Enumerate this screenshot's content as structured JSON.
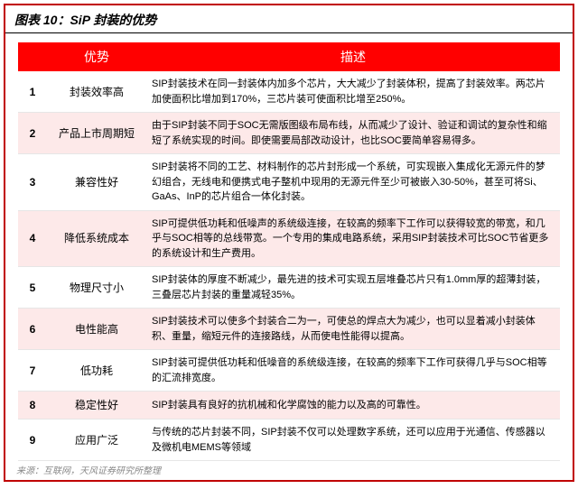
{
  "caption": "图表 10：SiP 封装的优势",
  "header": {
    "col1": "",
    "col2": "优势",
    "col3": "描述"
  },
  "rows": [
    {
      "idx": "1",
      "adv": "封装效率高",
      "desc": "SIP封装技术在同一封装体内加多个芯片，大大减少了封装体积，提高了封装效率。两芯片加使面积比增加到170%，三芯片装可使面积比增至250%。"
    },
    {
      "idx": "2",
      "adv": "产品上市周期短",
      "desc": "由于SIP封装不同于SOC无需版图级布局布线，从而减少了设计、验证和调试的复杂性和缩短了系统实现的时间。即使需要局部改动设计，也比SOC要简单容易得多。"
    },
    {
      "idx": "3",
      "adv": "兼容性好",
      "desc": "SIP封装将不同的工艺、材料制作的芯片封形成一个系统，可实现嵌入集成化无源元件的梦幻组合，无线电和便携式电子整机中现用的无源元件至少可被嵌入30-50%，甚至可将Si、GaAs、InP的芯片组合一体化封装。"
    },
    {
      "idx": "4",
      "adv": "降低系统成本",
      "desc": "SIP可提供低功耗和低噪声的系统级连接，在较高的频率下工作可以获得较宽的带宽，和几乎与SOC相等的总线带宽。一个专用的集成电路系统，采用SIP封装技术可比SOC节省更多的系统设计和生产费用。"
    },
    {
      "idx": "5",
      "adv": "物理尺寸小",
      "desc": "SIP封装体的厚度不断减少，最先进的技术可实现五层堆叠芯片只有1.0mm厚的超薄封装，三叠层芯片封装的重量减轻35%。"
    },
    {
      "idx": "6",
      "adv": "电性能高",
      "desc": "SIP封装技术可以使多个封装合二为一，可使总的焊点大为减少，也可以显着减小封装体积、重量，缩短元件的连接路线，从而使电性能得以提高。"
    },
    {
      "idx": "7",
      "adv": "低功耗",
      "desc": "SIP封装可提供低功耗和低噪音的系统级连接，在较高的频率下工作可获得几乎与SOC相等的汇流排宽度。"
    },
    {
      "idx": "8",
      "adv": "稳定性好",
      "desc": "SIP封装具有良好的抗机械和化学腐蚀的能力以及高的可靠性。"
    },
    {
      "idx": "9",
      "adv": "应用广泛",
      "desc": "与传统的芯片封装不同，SIP封装不仅可以处理数字系统，还可以应用于光通信、传感器以及微机电MEMS等领域"
    }
  ],
  "source": "来源：互联网，天风证券研究所整理"
}
